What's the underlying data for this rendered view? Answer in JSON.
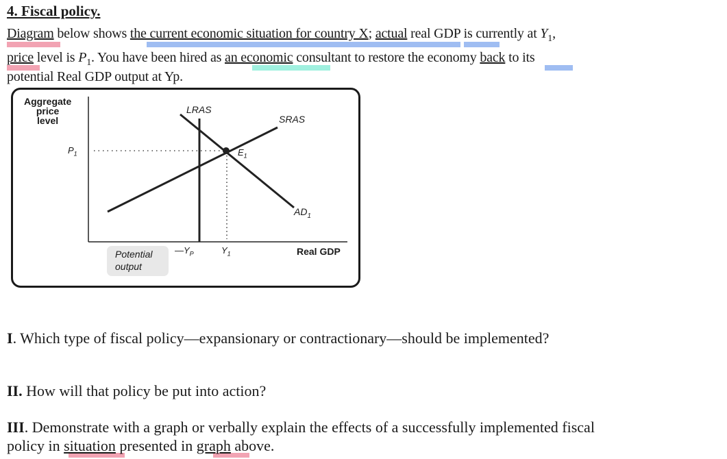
{
  "header": {
    "title": "4. Fiscal policy."
  },
  "intro": {
    "line1_parts": [
      "Diagram",
      " below shows ",
      "the current economic situation for country X",
      "; ",
      "actual",
      " real GDP is currently at ",
      "Y",
      "1",
      ","
    ],
    "line2_parts": [
      "price",
      " level is ",
      "P",
      "1",
      ". You have been hired as ",
      "an economic",
      " consultant to restore the economy ",
      "back",
      " to its"
    ],
    "line3": "potential Real GDP output at Yp."
  },
  "figure": {
    "y_axis_label_lines": [
      "Aggregate",
      "price",
      "level"
    ],
    "x_axis_label": "Real GDP",
    "curves": {
      "lras": "LRAS",
      "sras": "SRAS",
      "ad": "AD"
    },
    "ad_sub": "1",
    "point": "E",
    "point_sub": "1",
    "p_label": "P",
    "p_sub": "1",
    "y1_label": "Y",
    "y1_sub": "1",
    "yp_label": "—Y",
    "yp_sub": "P",
    "potential_lines": [
      "Potential",
      "output"
    ]
  },
  "chart_data": {
    "type": "diagram",
    "title": "",
    "xlabel": "Real GDP",
    "ylabel": "Aggregate price level",
    "series": [
      {
        "name": "LRAS",
        "kind": "vertical",
        "x": "Yp"
      },
      {
        "name": "SRAS",
        "kind": "upward-sloping"
      },
      {
        "name": "AD1",
        "kind": "downward-sloping"
      }
    ],
    "equilibrium": {
      "name": "E1",
      "x": "Y1",
      "y": "P1"
    },
    "markers": {
      "x": [
        "Yp",
        "Y1"
      ],
      "y": [
        "P1"
      ]
    }
  },
  "questions": [
    {
      "num": "I",
      "text": ". Which type of fiscal policy—expansionary or contractionary—should be implemented?"
    },
    {
      "num": "II.",
      "text": " How will that policy be put into action?"
    },
    {
      "num": "III",
      "text": ". Demonstrate with a graph or verbally explain the effects of a successfully implemented fiscal"
    },
    {
      "num": "",
      "text": "policy in situation presented in graph above."
    }
  ],
  "question4_parts": [
    "policy in ",
    "situation",
    " presented in ",
    "graph",
    " above."
  ],
  "colors": {
    "pink": "#f2a3b3",
    "blue": "#9fbdf2",
    "teal": "#9ff0df",
    "grey_box": "#e8e8e8"
  }
}
